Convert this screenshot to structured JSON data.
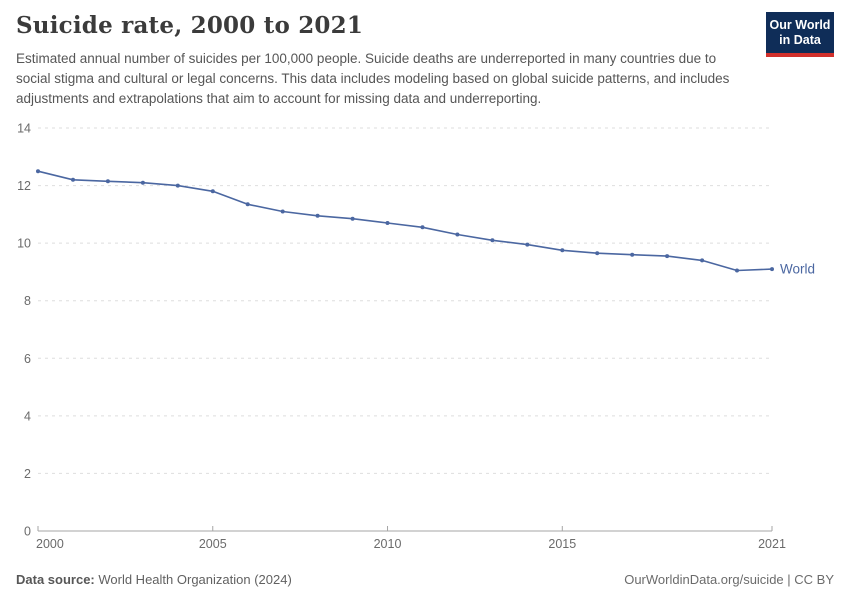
{
  "header": {
    "title": "Suicide rate, 2000 to 2021",
    "subtitle": "Estimated annual number of suicides per 100,000 people. Suicide deaths are underreported in many countries due to social stigma and cultural or legal concerns. This data includes modeling based on global suicide patterns, and includes adjustments and extrapolations that aim to account for missing data and underreporting.",
    "logo": {
      "line1": "Our World",
      "line2": "in Data"
    }
  },
  "chart_data": {
    "type": "line",
    "title": "Suicide rate, 2000 to 2021",
    "x": [
      2000,
      2001,
      2002,
      2003,
      2004,
      2005,
      2006,
      2007,
      2008,
      2009,
      2010,
      2011,
      2012,
      2013,
      2014,
      2015,
      2016,
      2017,
      2018,
      2019,
      2020,
      2021
    ],
    "series": [
      {
        "name": "World",
        "values": [
          12.5,
          12.2,
          12.15,
          12.1,
          12.0,
          11.8,
          11.35,
          11.1,
          10.95,
          10.85,
          10.7,
          10.55,
          10.3,
          10.1,
          9.95,
          9.75,
          9.65,
          9.6,
          9.55,
          9.4,
          9.05,
          9.1
        ]
      }
    ],
    "xlabel": "",
    "ylabel": "",
    "xlim": [
      2000,
      2021
    ],
    "ylim": [
      0,
      14
    ],
    "yticks": [
      0,
      2,
      4,
      6,
      8,
      10,
      12,
      14
    ],
    "xticks": [
      2000,
      2005,
      2010,
      2015,
      2021
    ],
    "grid": "horizontal-dashed",
    "legend_position": "end-of-line",
    "end_label": "World"
  },
  "footer": {
    "source_label": "Data source:",
    "source_value": " World Health Organization (2024)",
    "credit": "OurWorldinData.org/suicide | CC BY"
  },
  "colors": {
    "series": "#4b67a1",
    "grid": "#dedede",
    "axis": "#a5a5a5",
    "tick_label": "#6b6b6b",
    "logo_bg": "#0f2d58",
    "logo_stripe": "#d2302c"
  }
}
